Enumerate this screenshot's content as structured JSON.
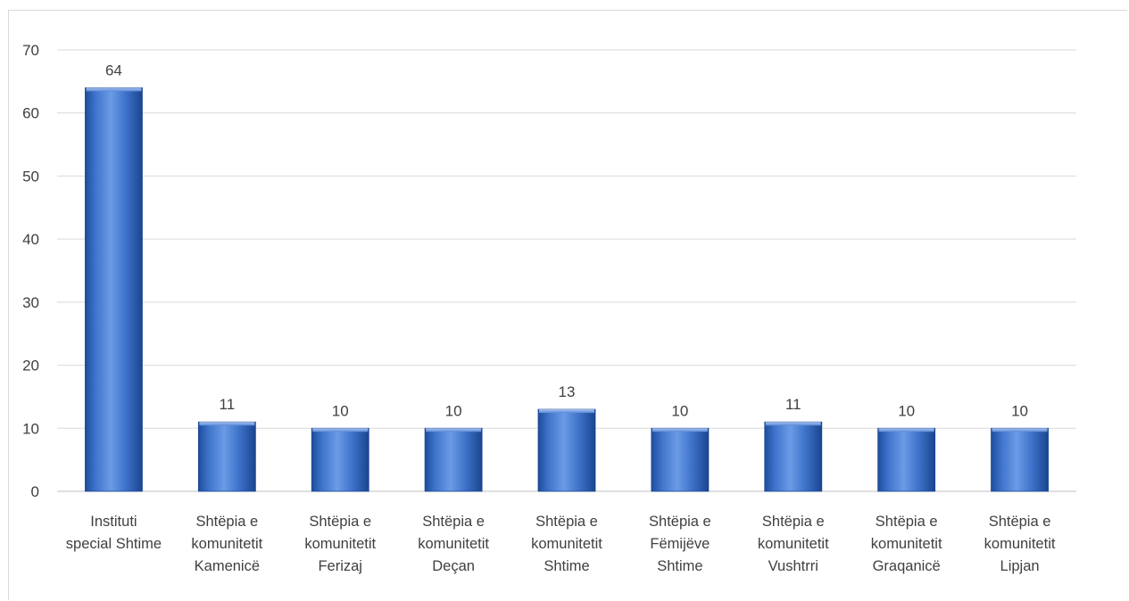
{
  "chart_data": {
    "type": "bar",
    "title": "",
    "xlabel": "",
    "ylabel": "",
    "ylim": [
      0,
      70
    ],
    "yticks": [
      0,
      10,
      20,
      30,
      40,
      50,
      60,
      70
    ],
    "grid": true,
    "legend": "none",
    "categories": [
      [
        "Instituti",
        "special  Shtime"
      ],
      [
        "Shtëpia e",
        "komunitetit",
        "Kamenicë"
      ],
      [
        "Shtëpia e",
        "komunitetit",
        "Ferizaj"
      ],
      [
        "Shtëpia e",
        "komunitetit",
        "Deçan"
      ],
      [
        "Shtëpia e",
        "komunitetit",
        "Shtime"
      ],
      [
        "Shtëpia e",
        "Fëmijëve",
        "Shtime"
      ],
      [
        "Shtëpia e",
        "komunitetit",
        "Vushtrri"
      ],
      [
        "Shtëpia e",
        "komunitetit",
        "Graqanicë"
      ],
      [
        "Shtëpia e",
        "komunitetit",
        "Lipjan"
      ]
    ],
    "values": [
      64,
      11,
      10,
      10,
      13,
      10,
      11,
      10,
      10
    ],
    "bar_color": "#3b6fc4",
    "bar_dark": "#1f4a93",
    "bar_light": "#6f9ae0"
  }
}
